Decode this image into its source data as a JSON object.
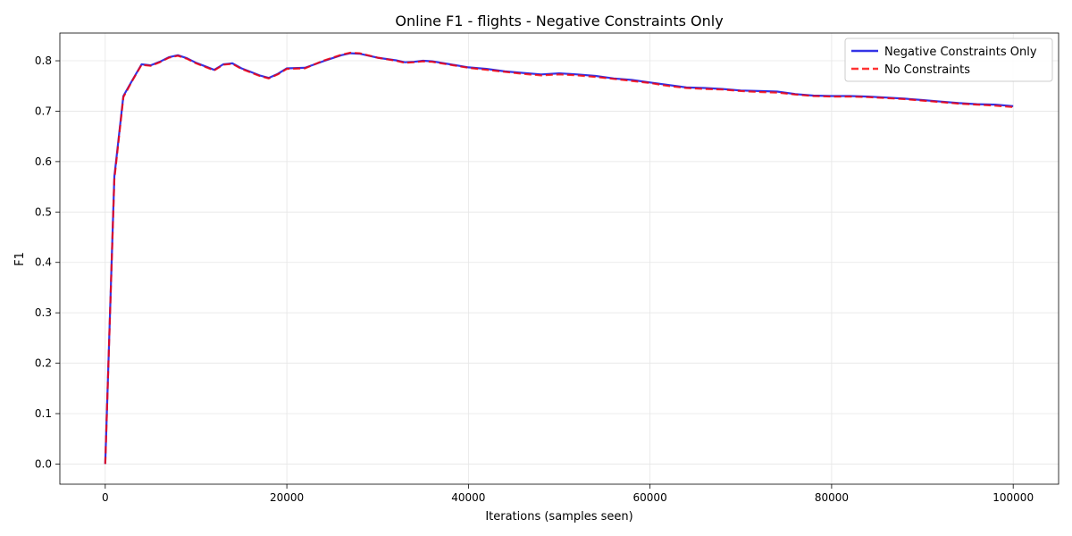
{
  "chart_data": {
    "type": "line",
    "title": "Online F1 - flights - Negative Constraints Only",
    "xlabel": "Iterations (samples seen)",
    "ylabel": "F1",
    "xlim": [
      -5000,
      105000
    ],
    "ylim": [
      -0.04,
      0.855
    ],
    "x_ticks": [
      0,
      20000,
      40000,
      60000,
      80000,
      100000
    ],
    "x_tick_labels": [
      "0",
      "20000",
      "40000",
      "60000",
      "80000",
      "100000"
    ],
    "y_ticks": [
      0.0,
      0.1,
      0.2,
      0.3,
      0.4,
      0.5,
      0.6,
      0.7,
      0.8
    ],
    "y_tick_labels": [
      "0.0",
      "0.1",
      "0.2",
      "0.3",
      "0.4",
      "0.5",
      "0.6",
      "0.7",
      "0.8"
    ],
    "grid": true,
    "legend_position": "top-right",
    "x": [
      0,
      1000,
      2000,
      3000,
      4000,
      5000,
      6000,
      7000,
      8000,
      9000,
      10000,
      11000,
      12000,
      13000,
      14000,
      15000,
      16000,
      17000,
      18000,
      19000,
      20000,
      22000,
      24000,
      26000,
      27000,
      28000,
      30000,
      32000,
      33000,
      34000,
      35000,
      36000,
      38000,
      40000,
      42000,
      44000,
      46000,
      48000,
      50000,
      52000,
      54000,
      56000,
      58000,
      60000,
      62000,
      64000,
      66000,
      68000,
      70000,
      72000,
      74000,
      76000,
      78000,
      80000,
      82000,
      84000,
      86000,
      88000,
      90000,
      92000,
      94000,
      96000,
      98000,
      100000
    ],
    "series": [
      {
        "name": "Negative Constraints Only",
        "color": "#0000e0",
        "style": "solid",
        "values": [
          0.0,
          0.57,
          0.73,
          0.762,
          0.793,
          0.791,
          0.798,
          0.807,
          0.811,
          0.805,
          0.796,
          0.789,
          0.782,
          0.793,
          0.795,
          0.785,
          0.778,
          0.771,
          0.766,
          0.774,
          0.785,
          0.786,
          0.799,
          0.811,
          0.815,
          0.814,
          0.806,
          0.801,
          0.797,
          0.798,
          0.8,
          0.799,
          0.793,
          0.787,
          0.784,
          0.779,
          0.776,
          0.773,
          0.775,
          0.773,
          0.77,
          0.765,
          0.762,
          0.757,
          0.752,
          0.747,
          0.746,
          0.744,
          0.741,
          0.74,
          0.739,
          0.734,
          0.731,
          0.73,
          0.73,
          0.729,
          0.727,
          0.725,
          0.722,
          0.719,
          0.716,
          0.714,
          0.713,
          0.71
        ]
      },
      {
        "name": "No Constraints",
        "color": "#ff0000",
        "style": "dashed",
        "values": [
          0.0,
          0.565,
          0.728,
          0.761,
          0.792,
          0.79,
          0.797,
          0.806,
          0.81,
          0.804,
          0.795,
          0.788,
          0.781,
          0.792,
          0.794,
          0.784,
          0.777,
          0.77,
          0.765,
          0.773,
          0.784,
          0.785,
          0.8,
          0.812,
          0.816,
          0.815,
          0.806,
          0.8,
          0.796,
          0.797,
          0.799,
          0.798,
          0.792,
          0.786,
          0.782,
          0.778,
          0.774,
          0.771,
          0.773,
          0.771,
          0.768,
          0.764,
          0.76,
          0.756,
          0.75,
          0.746,
          0.744,
          0.743,
          0.74,
          0.738,
          0.737,
          0.733,
          0.73,
          0.729,
          0.729,
          0.728,
          0.726,
          0.724,
          0.721,
          0.718,
          0.715,
          0.713,
          0.711,
          0.708
        ]
      }
    ]
  }
}
